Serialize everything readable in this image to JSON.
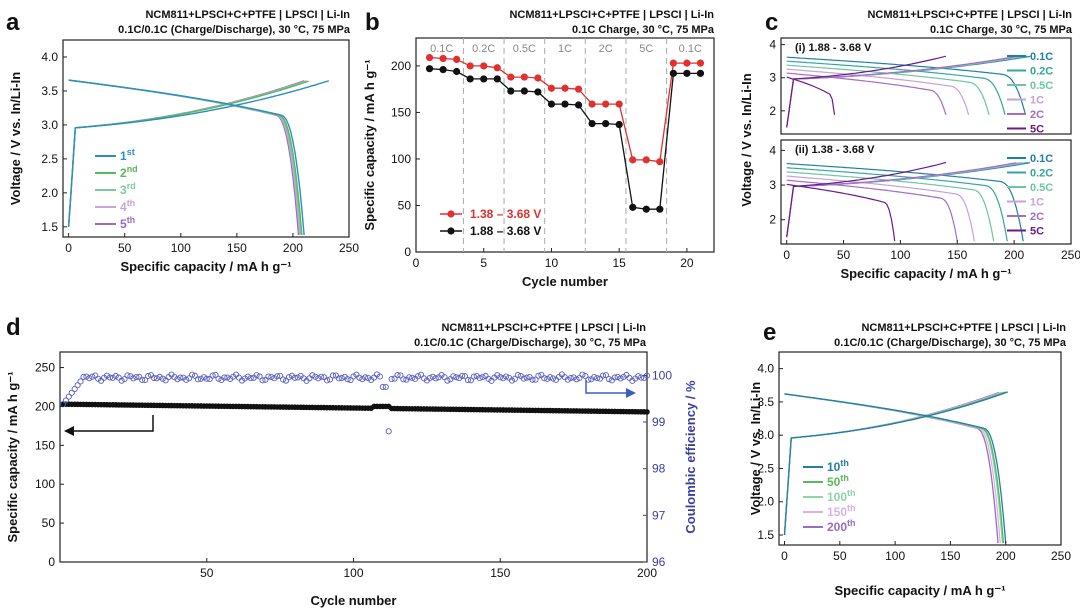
{
  "figure": {
    "panels": [
      {
        "letter": "a",
        "title1": "NCM811+LPSCI+C+PTFE | LPSCI | Li-In",
        "title2": "0.1C/0.1C (Charge/Discharge), 30 °C, 75 MPa"
      },
      {
        "letter": "b",
        "title1": "NCM811+LPSCI+C+PTFE | LPSCI | Li-In",
        "title2": "0.1C Charge, 30 °C, 75 MPa"
      },
      {
        "letter": "c",
        "title1": "NCM811+LPSCI+C+PTFE | LPSCI | Li-In",
        "title2": "0.1C Charge, 30 °C, 75 MPa"
      },
      {
        "letter": "d",
        "title1": "NCM811+LPSCI+C+PTFE | LPSCI | Li-In",
        "title2": "0.1C/0.1C (Charge/Discharge), 30 °C, 75 MPa"
      },
      {
        "letter": "e",
        "title1": "NCM811+LPSCI+C+PTFE | LPSCI | Li-In",
        "title2": "0.1C/0.1C (Charge/Discharge), 30 °C, 75 MPa"
      }
    ]
  },
  "chart_data": [
    {
      "id": "a",
      "type": "line",
      "xlabel": "Specific capacity / mA h g⁻¹",
      "ylabel": "Voltage / V vs. In/Li-In",
      "xlim": [
        -5,
        250
      ],
      "ylim": [
        1.35,
        4.25
      ],
      "xticks": [
        "0",
        "50",
        "100",
        "150",
        "200",
        "250"
      ],
      "yticks": [
        "1.5",
        "2.0",
        "2.5",
        "3.0",
        "3.5",
        "4.0"
      ],
      "series": [
        {
          "name": "1",
          "sup": "st",
          "color": "#2a8fbf",
          "charge_end": 232,
          "discharge_end": 210
        },
        {
          "name": "2",
          "sup": "nd",
          "color": "#5cb85c",
          "charge_end": 215,
          "discharge_end": 208
        },
        {
          "name": "3",
          "sup": "rd",
          "color": "#7cc8a0",
          "charge_end": 213,
          "discharge_end": 207
        },
        {
          "name": "4",
          "sup": "th",
          "color": "#c9a6d8",
          "charge_end": 212,
          "discharge_end": 206
        },
        {
          "name": "5",
          "sup": "th",
          "color": "#9b6bc4",
          "charge_end": 210,
          "discharge_end": 205
        }
      ]
    },
    {
      "id": "b",
      "type": "scatter",
      "xlabel": "Cycle number",
      "ylabel": "Specific capacity / mA h g⁻¹",
      "xlim": [
        0,
        22
      ],
      "ylim": [
        0,
        230
      ],
      "xticks": [
        "0",
        "5",
        "10",
        "15",
        "20"
      ],
      "yticks": [
        "0",
        "50",
        "100",
        "150",
        "200"
      ],
      "rate_labels": [
        "0.1C",
        "0.2C",
        "0.5C",
        "1C",
        "2C",
        "5C",
        "0.1C"
      ],
      "series": [
        {
          "name": "1.38 – 3.68 V",
          "color": "#e03030",
          "values": [
            209,
            208,
            207,
            200,
            200,
            198,
            188,
            188,
            187,
            176,
            176,
            175,
            159,
            159,
            159,
            99,
            99,
            97,
            203,
            203,
            203
          ]
        },
        {
          "name": "1.88 – 3.68 V",
          "color": "#111111",
          "values": [
            197,
            196,
            194,
            186,
            186,
            186,
            173,
            173,
            172,
            159,
            159,
            158,
            138,
            138,
            137,
            48,
            46,
            46,
            192,
            192,
            192
          ]
        }
      ]
    },
    {
      "id": "c",
      "type": "line",
      "xlabel": "Specific capacity / mA h g⁻¹",
      "ylabel": "Voltage / V vs. In/Li-In",
      "xlim": [
        -5,
        250
      ],
      "ylim": [
        1.3,
        4.2
      ],
      "xticks": [
        "0",
        "50",
        "100",
        "150",
        "200",
        "250"
      ],
      "yticks": [
        "2",
        "3",
        "4"
      ],
      "subplots": [
        {
          "label": "(i) 1.88 - 3.68 V",
          "lower_cutoff": 1.88,
          "discharge_ends": [
            210,
            192,
            178,
            160,
            140,
            42
          ]
        },
        {
          "label": "(ii) 1.38 - 3.68 V",
          "lower_cutoff": 1.38,
          "discharge_ends": [
            208,
            194,
            182,
            165,
            150,
            95
          ]
        }
      ],
      "series": [
        {
          "name": "0.1C",
          "color": "#1f7fa8"
        },
        {
          "name": "0.2C",
          "color": "#33a69a"
        },
        {
          "name": "0.5C",
          "color": "#6cc6a0"
        },
        {
          "name": "1C",
          "color": "#c7a0d6"
        },
        {
          "name": "2C",
          "color": "#a66bc4"
        },
        {
          "name": "5C",
          "color": "#6a1b8a"
        }
      ]
    },
    {
      "id": "d",
      "type": "scatter",
      "xlabel": "Cycle number",
      "ylabel": "Specific capacity / mA h g⁻¹",
      "y2label": "Coulombic efficiency / %",
      "xlim": [
        0,
        200
      ],
      "ylim": [
        0,
        270
      ],
      "y2lim": [
        96,
        100.5
      ],
      "xticks": [
        "50",
        "100",
        "150",
        "200"
      ],
      "yticks": [
        "0",
        "50",
        "100",
        "150",
        "200",
        "250"
      ],
      "y2ticks": [
        "96",
        "97",
        "98",
        "99",
        "100"
      ],
      "capacity": {
        "start": 203,
        "end": 193,
        "bump_cycles": [
          107,
          112
        ],
        "bump_value": 200
      },
      "efficiency": {
        "start": 99.3,
        "plateau": 99.95,
        "outlier_cycle": 112,
        "outlier_value": 98.8
      }
    },
    {
      "id": "e",
      "type": "line",
      "xlabel": "Specific capacity / mA h g⁻¹",
      "ylabel": "Voltage / V vs. In/Li-In",
      "xlim": [
        -5,
        250
      ],
      "ylim": [
        1.35,
        4.25
      ],
      "xticks": [
        "0",
        "50",
        "100",
        "150",
        "200",
        "250"
      ],
      "yticks": [
        "1.5",
        "2.0",
        "2.5",
        "3.0",
        "3.5",
        "4.0"
      ],
      "series": [
        {
          "name": "10",
          "sup": "th",
          "color": "#1f7fa8",
          "end": 202
        },
        {
          "name": "50",
          "sup": "th",
          "color": "#5cb85c",
          "end": 200
        },
        {
          "name": "100",
          "sup": "th",
          "color": "#8fd3a8",
          "end": 199
        },
        {
          "name": "150",
          "sup": "th",
          "color": "#d7b4e4",
          "end": 197
        },
        {
          "name": "200",
          "sup": "th",
          "color": "#9b6bc4",
          "end": 195
        }
      ]
    }
  ]
}
